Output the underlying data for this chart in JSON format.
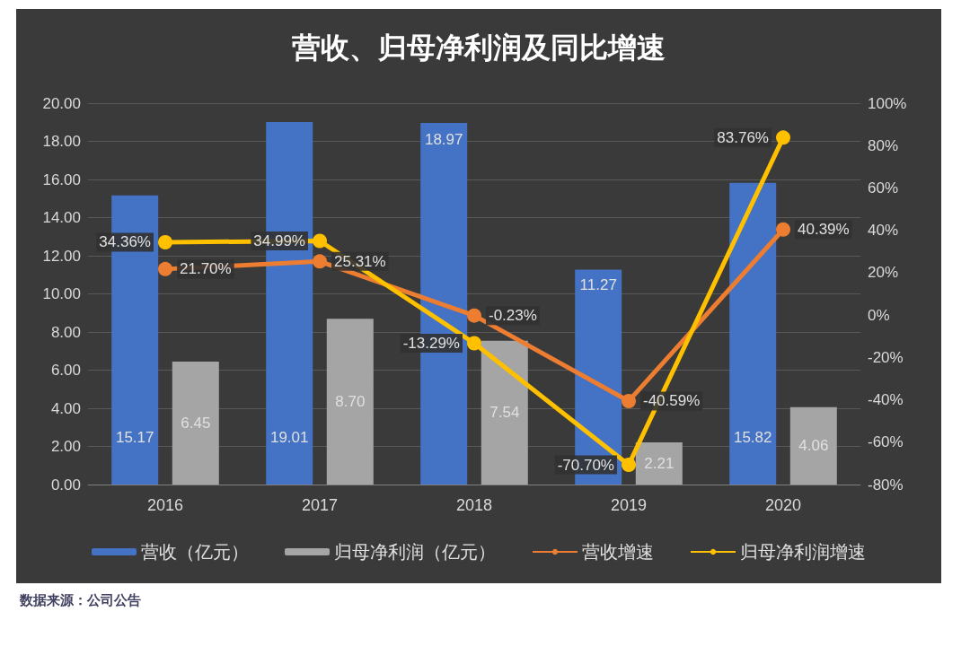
{
  "chart_data": {
    "type": "bar",
    "title": "营收、归母净利润及同比增速",
    "categories": [
      "2016",
      "2017",
      "2018",
      "2019",
      "2020"
    ],
    "series": [
      {
        "name": "营收（亿元）",
        "color": "#4472c4",
        "values": [
          15.17,
          19.01,
          18.97,
          11.27,
          15.82
        ],
        "value_labels": [
          "15.17",
          "19.01",
          "18.97",
          "11.27",
          "15.82"
        ]
      },
      {
        "name": "归母净利润（亿元）",
        "color": "#a5a5a5",
        "values": [
          6.45,
          8.7,
          7.54,
          2.21,
          4.06
        ],
        "value_labels": [
          "6.45",
          "8.70",
          "7.54",
          "2.21",
          "4.06"
        ]
      },
      {
        "name": "营收增速",
        "type": "line",
        "axis": "y2",
        "color": "#ed7d31",
        "values": [
          21.7,
          25.31,
          -0.23,
          -40.59,
          40.39
        ],
        "value_labels": [
          "21.70%",
          "25.31%",
          "-0.23%",
          "-40.59%",
          "40.39%"
        ]
      },
      {
        "name": "归母净利润增速",
        "type": "line",
        "axis": "y2",
        "color": "#ffc000",
        "values": [
          34.36,
          34.99,
          -13.29,
          -70.7,
          83.76
        ],
        "value_labels": [
          "34.36%",
          "34.99%",
          "-13.29%",
          "-70.70%",
          "83.76%"
        ]
      }
    ],
    "ylim": [
      0,
      20
    ],
    "yticks": [
      {
        "value": 0,
        "label": "0.00"
      },
      {
        "value": 2,
        "label": "2.00"
      },
      {
        "value": 4,
        "label": "4.00"
      },
      {
        "value": 6,
        "label": "6.00"
      },
      {
        "value": 8,
        "label": "8.00"
      },
      {
        "value": 10,
        "label": "10.00"
      },
      {
        "value": 12,
        "label": "12.00"
      },
      {
        "value": 14,
        "label": "14.00"
      },
      {
        "value": 16,
        "label": "16.00"
      },
      {
        "value": 18,
        "label": "18.00"
      },
      {
        "value": 20,
        "label": "20.00"
      }
    ],
    "y2lim": [
      -80,
      100
    ],
    "y2ticks": [
      {
        "value": -80,
        "label": "-80%"
      },
      {
        "value": -60,
        "label": "-60%"
      },
      {
        "value": -40,
        "label": "-40%"
      },
      {
        "value": -20,
        "label": "-20%"
      },
      {
        "value": 0,
        "label": "0%"
      },
      {
        "value": 20,
        "label": "20%"
      },
      {
        "value": 40,
        "label": "40%"
      },
      {
        "value": 60,
        "label": "60%"
      },
      {
        "value": 80,
        "label": "80%"
      },
      {
        "value": 100,
        "label": "100%"
      }
    ],
    "grid": "y",
    "legend": "bottom",
    "marker": "circle",
    "annotations": [
      "数据来源：公司公告"
    ]
  }
}
